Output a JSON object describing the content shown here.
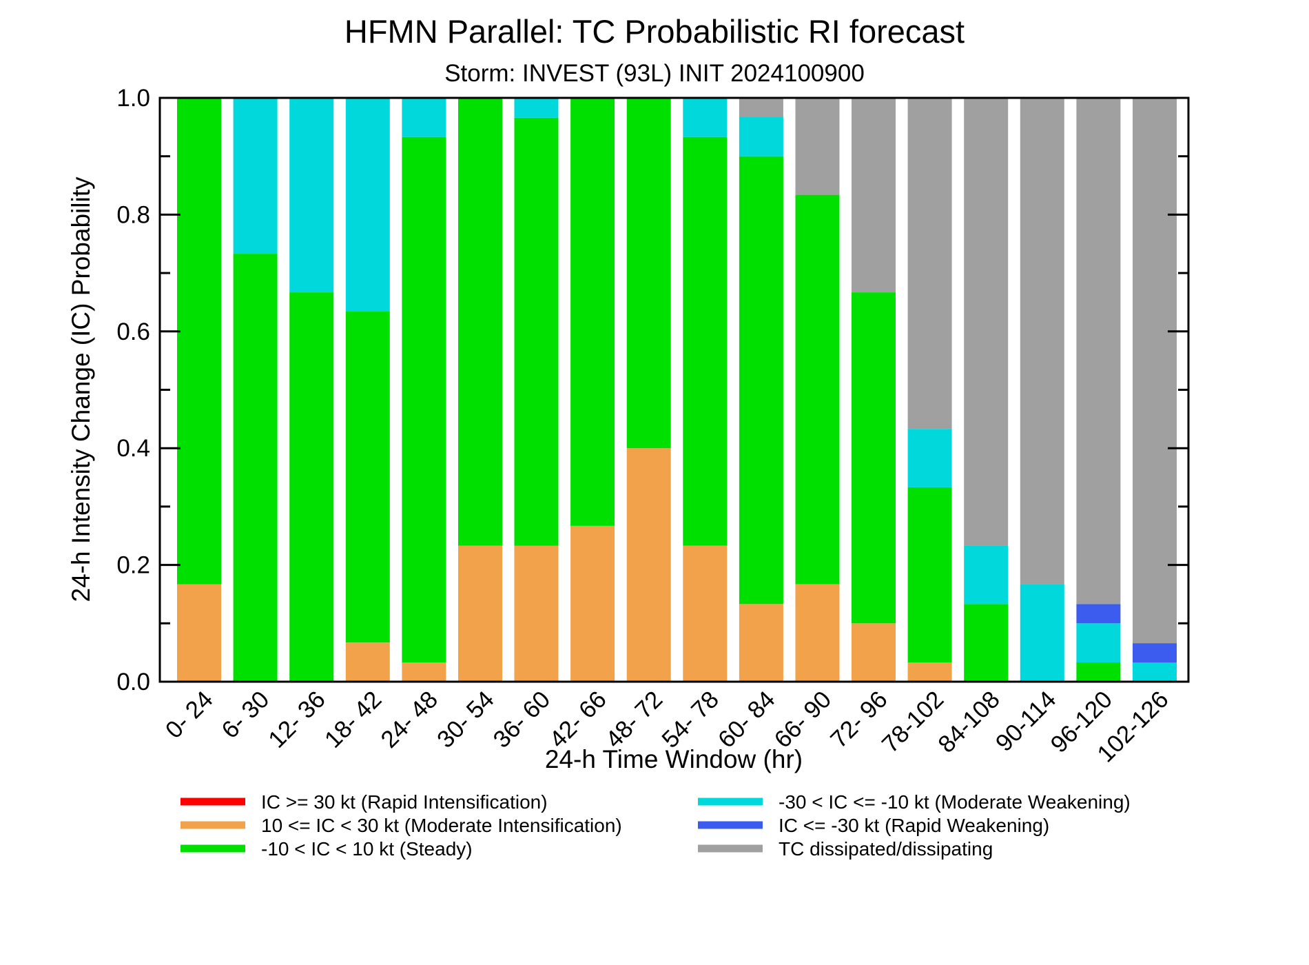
{
  "chart_data": {
    "type": "bar",
    "stacked": true,
    "title": "HFMN Parallel: TC Probabilistic RI forecast",
    "subtitle": "Storm: INVEST (93L) INIT 2024100900",
    "xlabel": "24-h Time Window (hr)",
    "ylabel": "24-h Intensity Change (IC) Probability",
    "ylim": [
      0,
      1
    ],
    "yticks": [
      "0.0",
      "0.2",
      "0.4",
      "0.6",
      "0.8",
      "1.0"
    ],
    "grid": false,
    "legend_position": "bottom",
    "categories": [
      "0- 24",
      "6- 30",
      "12- 36",
      "18- 42",
      "24- 48",
      "30- 54",
      "36- 60",
      "42- 66",
      "48- 72",
      "54- 78",
      "60- 84",
      "66- 90",
      "72- 96",
      "78-102",
      "84-108",
      "90-114",
      "96-120",
      "102-126"
    ],
    "series": [
      {
        "name": "IC >= 30 kt (Rapid Intensification)",
        "color": "#ff0000",
        "values": [
          0,
          0,
          0,
          0,
          0,
          0,
          0,
          0,
          0,
          0,
          0,
          0,
          0,
          0,
          0,
          0,
          0,
          0
        ]
      },
      {
        "name": "10 <= IC < 30 kt (Moderate Intensification)",
        "color": "#f2a24b",
        "values": [
          0.167,
          0,
          0,
          0.067,
          0.033,
          0.233,
          0.233,
          0.267,
          0.4,
          0.233,
          0.133,
          0.167,
          0.1,
          0.033,
          0,
          0,
          0,
          0
        ]
      },
      {
        "name": "-10 < IC < 10 kt (Steady)",
        "color": "#00e000",
        "values": [
          0.833,
          0.733,
          0.667,
          0.567,
          0.9,
          0.767,
          0.733,
          0.733,
          0.6,
          0.7,
          0.767,
          0.667,
          0.567,
          0.3,
          0.133,
          0,
          0.033,
          0
        ]
      },
      {
        "name": "-30 < IC <= -10 kt (Moderate Weakening)",
        "color": "#00d8dc",
        "values": [
          0,
          0.267,
          0.333,
          0.367,
          0.067,
          0,
          0.033,
          0,
          0,
          0.067,
          0.067,
          0,
          0,
          0.1,
          0.1,
          0.167,
          0.067,
          0.033
        ]
      },
      {
        "name": "IC <= -30 kt (Rapid Weakening)",
        "color": "#3c5cf0",
        "values": [
          0,
          0,
          0,
          0,
          0,
          0,
          0,
          0,
          0,
          0,
          0,
          0,
          0,
          0,
          0,
          0,
          0.033,
          0.033
        ]
      },
      {
        "name": "TC dissipated/dissipating",
        "color": "#a0a0a0",
        "values": [
          0,
          0,
          0,
          0,
          0,
          0,
          0,
          0,
          0,
          0,
          0.033,
          0.167,
          0.333,
          0.567,
          0.767,
          0.833,
          0.867,
          0.933
        ]
      }
    ]
  }
}
